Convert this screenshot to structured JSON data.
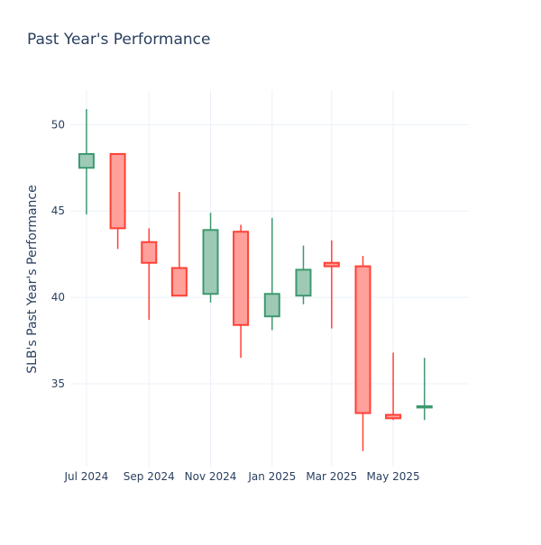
{
  "chart_data": {
    "type": "candlestick",
    "title": "Past Year's Performance",
    "ylabel": "SLB's Past Year's Performance",
    "xlabel": "",
    "ylim": [
      30.2,
      52.0
    ],
    "yticks": [
      35,
      40,
      45,
      50
    ],
    "xlim": [
      "2024-06-15",
      "2025-07-15"
    ],
    "xticks": [
      {
        "date": "2024-07-01",
        "label": "Jul 2024"
      },
      {
        "date": "2024-09-01",
        "label": "Sep 2024"
      },
      {
        "date": "2024-11-01",
        "label": "Nov 2024"
      },
      {
        "date": "2025-01-01",
        "label": "Jan 2025"
      },
      {
        "date": "2025-03-01",
        "label": "Mar 2025"
      },
      {
        "date": "2025-05-01",
        "label": "May 2025"
      }
    ],
    "increasing_color": "#3d9970",
    "increasing_fill": "#9ecab5",
    "decreasing_color": "#ff4136",
    "decreasing_fill": "#ffa09b",
    "grid": true,
    "candles": [
      {
        "date": "2024-07-01",
        "open": 47.5,
        "high": 50.9,
        "low": 44.8,
        "close": 48.3
      },
      {
        "date": "2024-08-01",
        "open": 48.3,
        "high": 48.3,
        "low": 42.8,
        "close": 44.0
      },
      {
        "date": "2024-09-01",
        "open": 43.2,
        "high": 44.0,
        "low": 38.7,
        "close": 42.0
      },
      {
        "date": "2024-10-01",
        "open": 41.7,
        "high": 46.1,
        "low": 40.1,
        "close": 40.1
      },
      {
        "date": "2024-11-01",
        "open": 40.2,
        "high": 44.9,
        "low": 39.7,
        "close": 43.9
      },
      {
        "date": "2024-12-01",
        "open": 43.8,
        "high": 44.2,
        "low": 36.5,
        "close": 38.4
      },
      {
        "date": "2025-01-01",
        "open": 38.9,
        "high": 44.6,
        "low": 38.1,
        "close": 40.2
      },
      {
        "date": "2025-02-01",
        "open": 40.1,
        "high": 43.0,
        "low": 39.6,
        "close": 41.6
      },
      {
        "date": "2025-03-01",
        "open": 42.0,
        "high": 43.3,
        "low": 38.2,
        "close": 41.8
      },
      {
        "date": "2025-04-01",
        "open": 41.8,
        "high": 42.4,
        "low": 31.1,
        "close": 33.3
      },
      {
        "date": "2025-05-01",
        "open": 33.2,
        "high": 36.8,
        "low": 32.9,
        "close": 33.0
      },
      {
        "date": "2025-06-01",
        "open": 33.7,
        "high": 36.5,
        "low": 32.9,
        "close": 33.7
      }
    ]
  }
}
